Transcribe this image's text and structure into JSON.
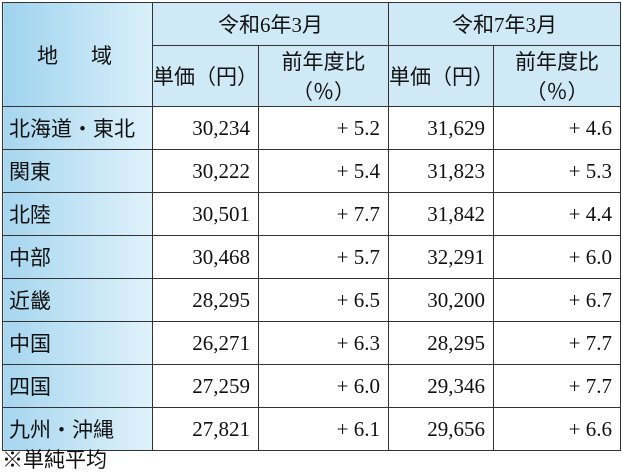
{
  "table": {
    "header": {
      "region": "地　域",
      "periods": [
        "令和6年3月",
        "令和7年3月"
      ],
      "subheaders": [
        "単価（円）",
        "前年度比（％）",
        "単価（円）",
        "前年度比（％）"
      ]
    },
    "rows": [
      [
        "北海道・東北",
        "30,234",
        "+ 5.2",
        "31,629",
        "+ 4.6"
      ],
      [
        "関東",
        "30,222",
        "+ 5.4",
        "31,823",
        "+ 5.3"
      ],
      [
        "北陸",
        "30,501",
        "+ 7.7",
        "31,842",
        "+ 4.4"
      ],
      [
        "中部",
        "30,468",
        "+ 5.7",
        "32,291",
        "+ 6.0"
      ],
      [
        "近畿",
        "28,295",
        "+ 6.5",
        "30,200",
        "+ 6.7"
      ],
      [
        "中国",
        "26,271",
        "+ 6.3",
        "28,295",
        "+ 7.7"
      ],
      [
        "四国",
        "27,259",
        "+ 6.0",
        "29,346",
        "+ 7.7"
      ],
      [
        "九州・沖縄",
        "27,821",
        "+ 6.1",
        "29,656",
        "+ 6.6"
      ]
    ]
  },
  "footnote": "※単純平均"
}
